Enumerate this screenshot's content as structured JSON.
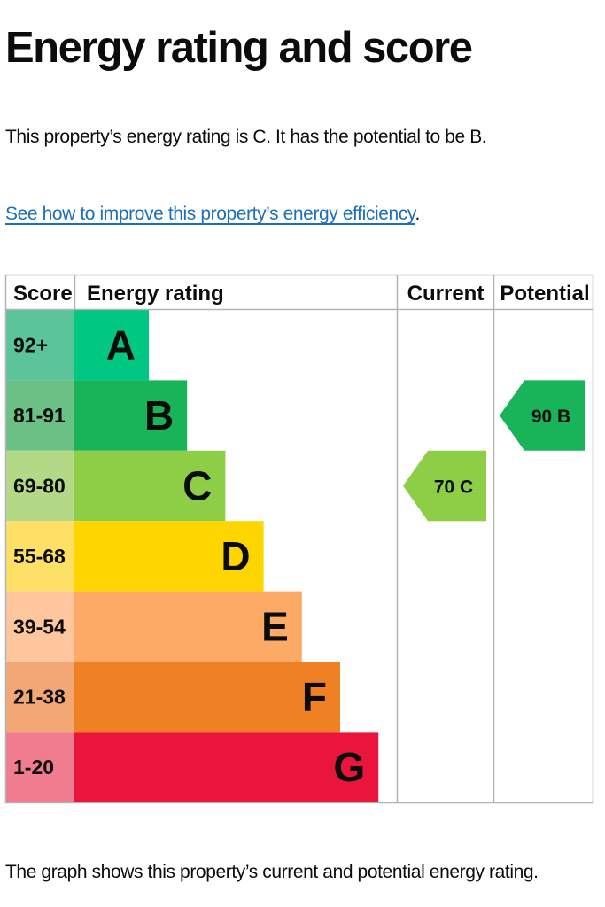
{
  "heading": "Energy rating and score",
  "summary_text": "This property’s energy rating is C. It has the potential to be B.",
  "improve_link": "See how to improve this property’s energy efficiency",
  "improve_suffix": ".",
  "footer_text": "The graph shows this property’s current and potential energy rating.",
  "chart_data": {
    "type": "table",
    "columns": [
      "Score",
      "Energy rating",
      "Current",
      "Potential"
    ],
    "bands": [
      {
        "score": "92+",
        "letter": "A",
        "score_color": "#5bc49b",
        "bar_color": "#00c781"
      },
      {
        "score": "81-91",
        "letter": "B",
        "score_color": "#6bc086",
        "bar_color": "#19b459"
      },
      {
        "score": "69-80",
        "letter": "C",
        "score_color": "#b3d987",
        "bar_color": "#8dce46"
      },
      {
        "score": "55-68",
        "letter": "D",
        "score_color": "#ffe066",
        "bar_color": "#ffd500"
      },
      {
        "score": "39-54",
        "letter": "E",
        "score_color": "#fdc69c",
        "bar_color": "#fcaa65"
      },
      {
        "score": "21-38",
        "letter": "F",
        "score_color": "#f3a774",
        "bar_color": "#ef8023"
      },
      {
        "score": "1-20",
        "letter": "G",
        "score_color": "#f17b8f",
        "bar_color": "#e9153b"
      }
    ],
    "current": {
      "score": 70,
      "band": "C",
      "label": "70 C",
      "color": "#8dce46"
    },
    "potential": {
      "score": 90,
      "band": "B",
      "label": "90 B",
      "color": "#19b459"
    }
  }
}
